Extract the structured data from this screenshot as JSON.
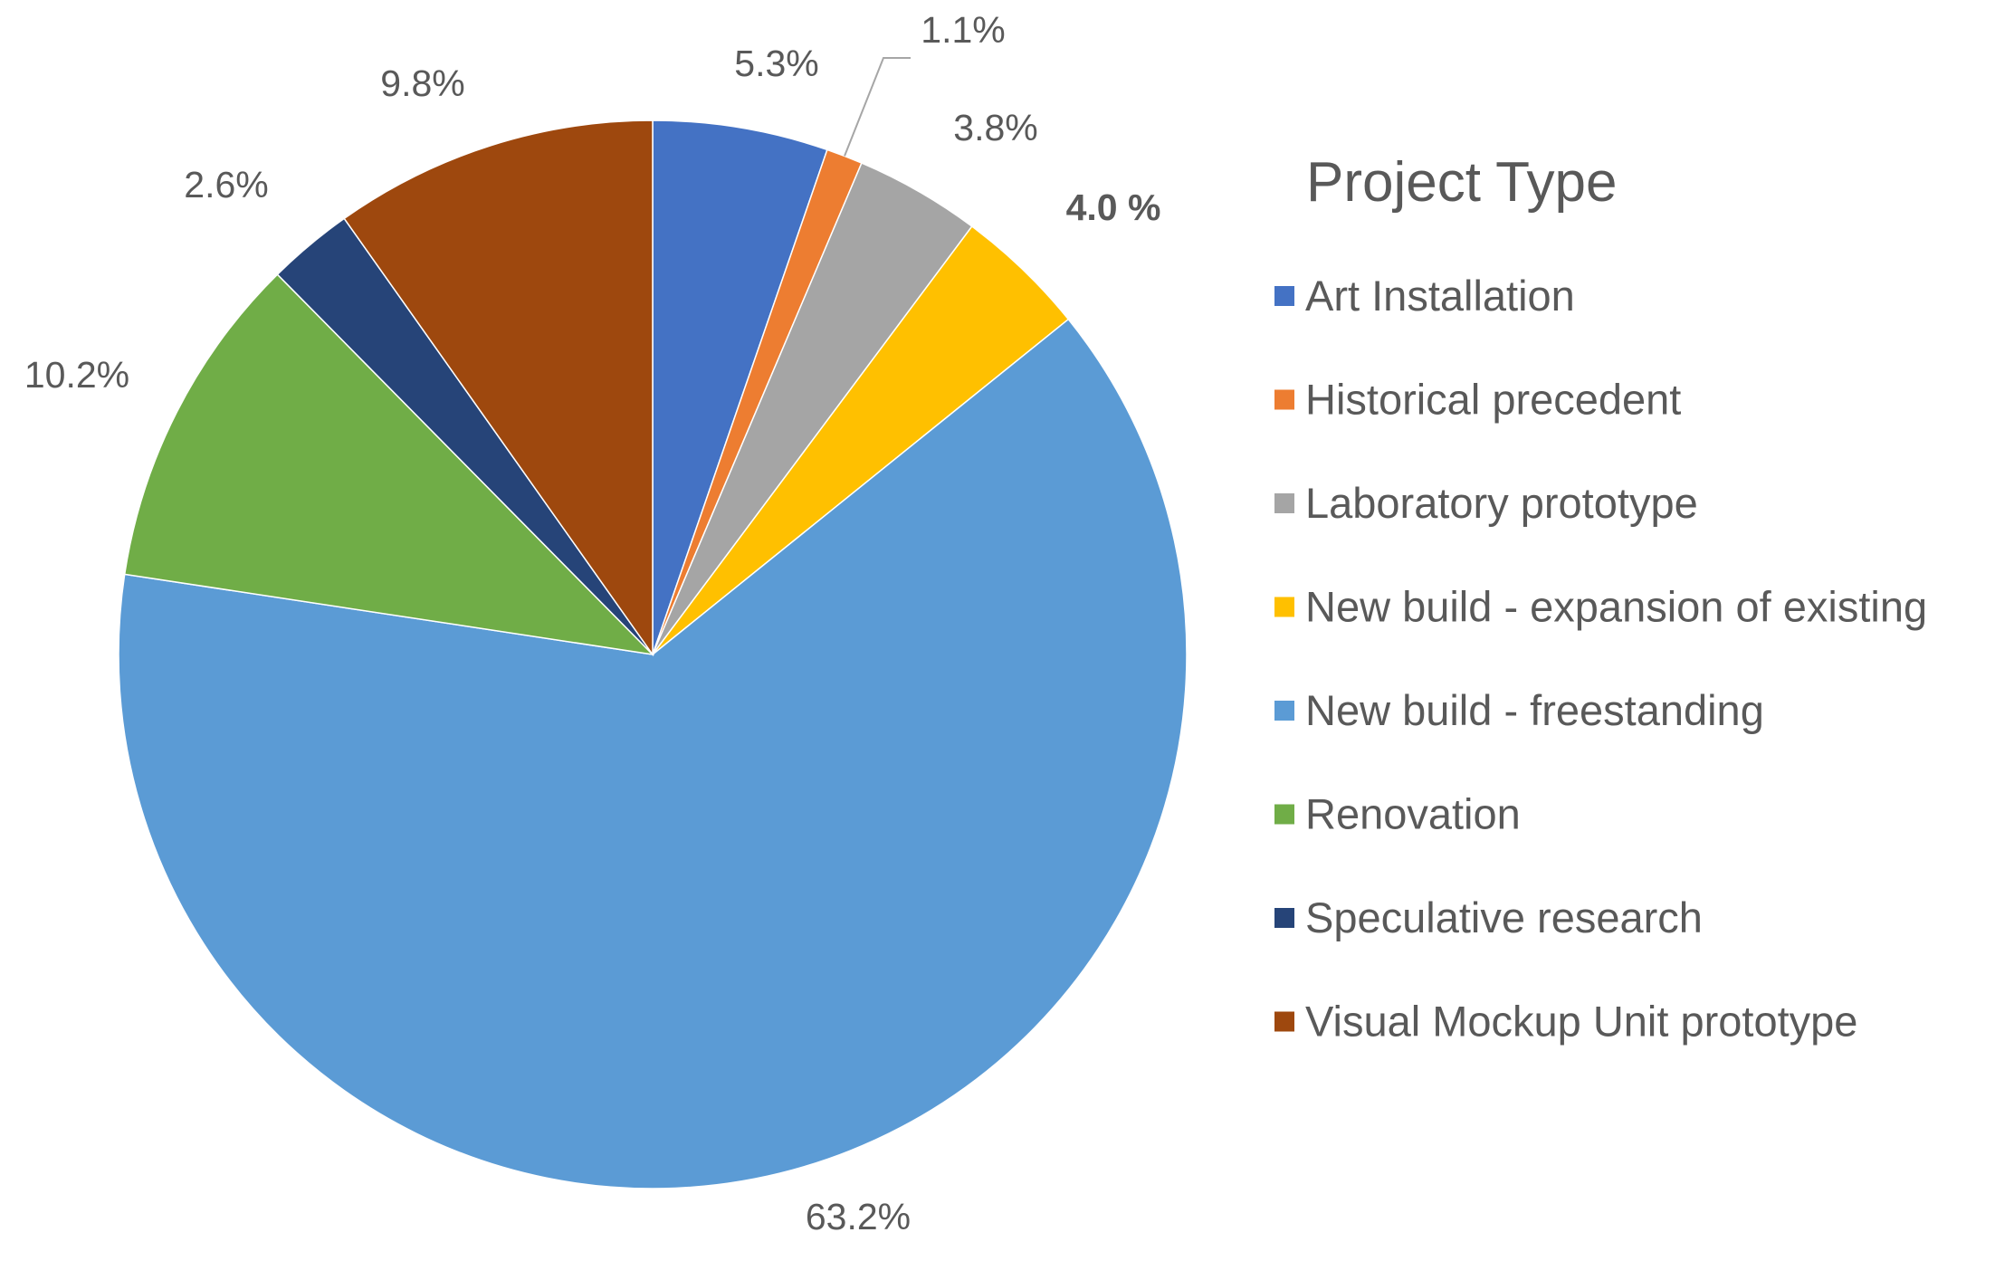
{
  "chart_data": {
    "type": "pie",
    "title": "",
    "legend": {
      "title": "Project Type",
      "placement": "right"
    },
    "categories": [
      "Art Installation",
      "Historical precedent",
      "Laboratory prototype",
      "New build - expansion of existing",
      "New build - freestanding",
      "Renovation",
      "Speculative research",
      "Visual Mockup Unit prototype"
    ],
    "values": [
      5.3,
      1.1,
      3.8,
      4.0,
      63.2,
      10.2,
      2.6,
      9.8
    ],
    "value_labels": [
      "5.3%",
      "1.1%",
      "3.8%",
      "4.0 %",
      "63.2%",
      "10.2%",
      "2.6%",
      "9.8%"
    ],
    "colors": [
      "#4472C4",
      "#ED7D31",
      "#A5A5A5",
      "#FFC000",
      "#5B9BD5",
      "#70AD47",
      "#264478",
      "#9E480E"
    ]
  }
}
